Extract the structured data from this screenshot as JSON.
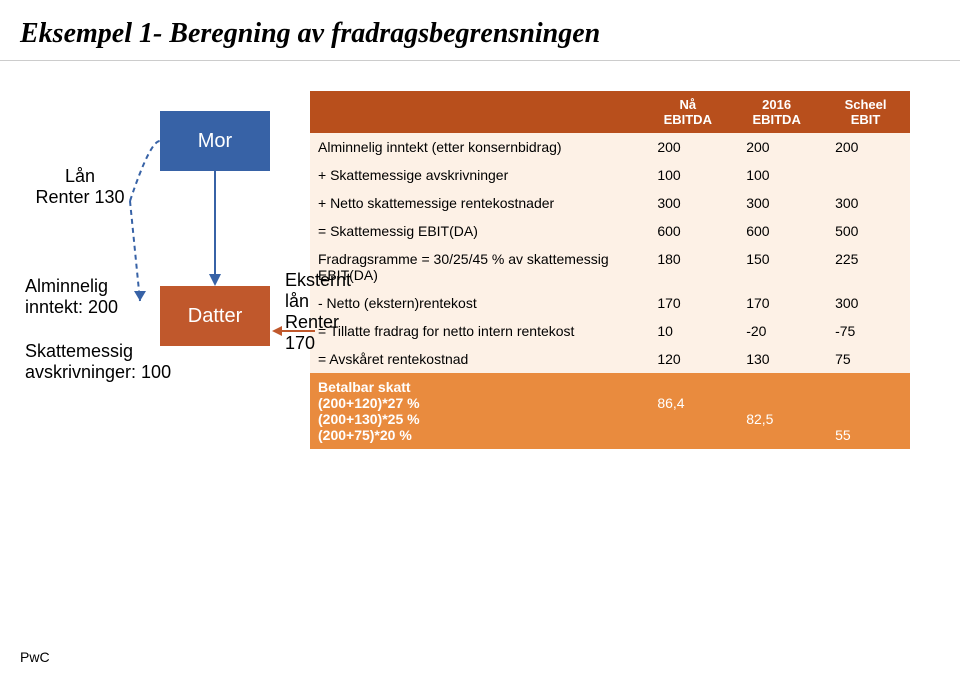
{
  "title": "Eksempel 1- Beregning av fradragsbegrensningen",
  "title_fontsize": 28,
  "colors": {
    "header_bg": "#b84f1c",
    "header_text": "#ffffff",
    "highlight_row_bg": "#e98b3e",
    "highlight_row_text": "#ffffff",
    "body_bg": "#fdf1e6",
    "body_text": "#000000",
    "mor_box": "#3762a6",
    "datter_box": "#c0582c",
    "arrow": "#3762a6",
    "border": "#b84f1c"
  },
  "diagram": {
    "mor": "Mor",
    "datter": "Datter",
    "loan": "Lån\nRenter 130",
    "inntekt": "Alminnelig\ninntekt: 200",
    "avskr": "Skattemessig\navskrivninger: 100",
    "eksternt": "Eksternt\nlån\nRenter 170"
  },
  "table": {
    "headers": [
      "",
      "Nå\nEBITDA",
      "2016\nEBITDA",
      "Scheel\nEBIT"
    ],
    "rows": [
      {
        "label": "Alminnelig inntekt (etter konsernbidrag)",
        "vals": [
          "200",
          "200",
          "200"
        ],
        "style": "body"
      },
      {
        "label": "+ Skattemessige avskrivninger",
        "vals": [
          "100",
          "100",
          ""
        ],
        "style": "body"
      },
      {
        "label": "+ Netto skattemessige rentekostnader",
        "vals": [
          "300",
          "300",
          "300"
        ],
        "style": "body"
      },
      {
        "label": "= Skattemessig EBIT(DA)",
        "vals": [
          "600",
          "600",
          "500"
        ],
        "style": "body"
      },
      {
        "label": "Fradragsramme = 30/25/45 % av skattemessig EBIT(DA)",
        "vals": [
          "180",
          "150",
          "225"
        ],
        "style": "body"
      },
      {
        "label": "- Netto (ekstern)rentekost",
        "vals": [
          "170",
          "170",
          "300"
        ],
        "style": "body"
      },
      {
        "label": "= Tillatte fradrag for netto intern rentekost",
        "vals": [
          "10",
          "-20",
          "-75"
        ],
        "style": "body"
      },
      {
        "label": "= Avskåret rentekostnad",
        "vals": [
          "120",
          "130",
          "75"
        ],
        "style": "body"
      },
      {
        "label": "Betalbar skatt\n(200+120)*27 %\n(200+130)*25 %\n(200+75)*20 %",
        "vals": [
          "\n86,4",
          "\n\n82,5",
          "\n\n\n55"
        ],
        "style": "highlight"
      }
    ]
  },
  "footer": "PwC"
}
